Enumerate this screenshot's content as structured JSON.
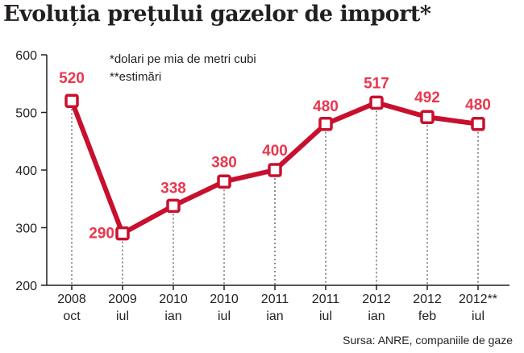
{
  "title": "Evoluția prețului gazelor de import*",
  "notes": [
    "*dolari pe mia de metri cubi",
    "**estimări"
  ],
  "source": "Sursa: ANRE, companiile de gaze",
  "colors": {
    "line": "#c8102e",
    "label": "#e8384f",
    "marker_fill": "#ffffff",
    "axis": "#231f20",
    "grid": "#231f20"
  },
  "chart_data": {
    "type": "line",
    "categories": [
      {
        "year": "2008",
        "period": "oct"
      },
      {
        "year": "2009",
        "period": "iul"
      },
      {
        "year": "2010",
        "period": "ian"
      },
      {
        "year": "2010",
        "period": "iul"
      },
      {
        "year": "2011",
        "period": "ian"
      },
      {
        "year": "2011",
        "period": "iul"
      },
      {
        "year": "2012",
        "period": "ian"
      },
      {
        "year": "2012",
        "period": "feb"
      },
      {
        "year": "2012**",
        "period": "iul"
      }
    ],
    "values": [
      520,
      290,
      338,
      380,
      400,
      480,
      517,
      492,
      480
    ],
    "data_labels": [
      "520",
      "290",
      "338",
      "380",
      "400",
      "480",
      "517",
      "492",
      "480"
    ],
    "ylim": [
      200,
      600
    ],
    "yticks": [
      200,
      300,
      400,
      500,
      600
    ],
    "grid": "vertical dashed drop lines"
  }
}
